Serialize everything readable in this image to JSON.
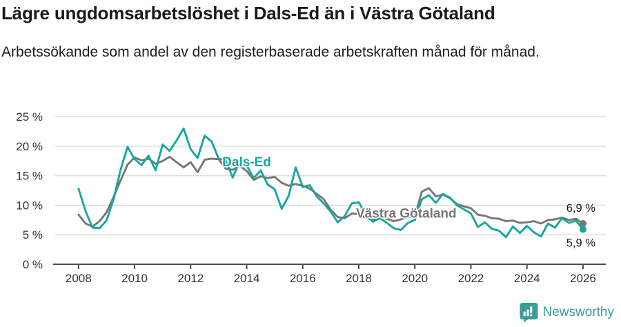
{
  "header": {
    "title": "Lägre ungdomsarbetslöshet i Dals-Ed än i Västra Götaland",
    "subtitle": "Arbetssökande som andel av den registerbaserade arbetskraften månad för månad."
  },
  "footer": {
    "brand": "Newsworthy",
    "brand_color": "#3a9d96",
    "logo_icon": "newsworthy-pin-barchart-icon"
  },
  "chart_data": {
    "type": "line",
    "title": "Lägre ungdomsarbetslöshet i Dals-Ed än i Västra Götaland",
    "subtitle": "Arbetssökande som andel av den registerbaserade arbetskraften månad för månad.",
    "xlabel": "",
    "ylabel": "",
    "unit": "%",
    "grid": "horizontal",
    "legend": "inline-labels",
    "xlim": [
      2007.9,
      2026.8
    ],
    "ylim": [
      0,
      25
    ],
    "yticks": [
      {
        "value": 0,
        "label": "0 %"
      },
      {
        "value": 5,
        "label": "5 %"
      },
      {
        "value": 10,
        "label": "10 %"
      },
      {
        "value": 15,
        "label": "15 %"
      },
      {
        "value": 20,
        "label": "20 %"
      },
      {
        "value": 25,
        "label": "25 %"
      }
    ],
    "xticks": [
      {
        "value": 2008,
        "label": "2008"
      },
      {
        "value": 2010,
        "label": "2010"
      },
      {
        "value": 2012,
        "label": "2012"
      },
      {
        "value": 2014,
        "label": "2014"
      },
      {
        "value": 2016,
        "label": "2016"
      },
      {
        "value": 2018,
        "label": "2018"
      },
      {
        "value": 2020,
        "label": "2020"
      },
      {
        "value": 2022,
        "label": "2022"
      },
      {
        "value": 2024,
        "label": "2024"
      },
      {
        "value": 2026,
        "label": "2026"
      }
    ],
    "x": [
      2008,
      2008.25,
      2008.5,
      2008.75,
      2009,
      2009.25,
      2009.5,
      2009.75,
      2010,
      2010.25,
      2010.5,
      2010.75,
      2011,
      2011.25,
      2011.5,
      2011.75,
      2012,
      2012.25,
      2012.5,
      2012.75,
      2013,
      2013.25,
      2013.5,
      2013.75,
      2014,
      2014.25,
      2014.5,
      2014.75,
      2015,
      2015.25,
      2015.5,
      2015.75,
      2016,
      2016.25,
      2016.5,
      2016.75,
      2017,
      2017.25,
      2017.5,
      2017.75,
      2018,
      2018.25,
      2018.5,
      2018.75,
      2019,
      2019.25,
      2019.5,
      2019.75,
      2020,
      2020.25,
      2020.5,
      2020.75,
      2021,
      2021.25,
      2021.5,
      2021.75,
      2022,
      2022.25,
      2022.5,
      2022.75,
      2023,
      2023.25,
      2023.5,
      2023.75,
      2024,
      2024.25,
      2024.5,
      2024.75,
      2025,
      2025.25,
      2025.5,
      2025.75,
      2026
    ],
    "series": [
      {
        "id": "vastra-gotaland",
        "name": "Västra Götaland",
        "color": "#767676",
        "end_value": 6.9,
        "end_label": "6,9 %",
        "end_label_position": "above",
        "inline_label_x": 2017.9,
        "inline_label_y": 7.9,
        "values": [
          8.4,
          6.9,
          6.4,
          7.3,
          8.8,
          11.4,
          14.2,
          16.9,
          18.1,
          17.6,
          17.9,
          17.0,
          17.5,
          18.2,
          17.3,
          16.4,
          17.3,
          15.6,
          17.7,
          17.9,
          17.8,
          16.2,
          16.0,
          16.7,
          15.8,
          14.3,
          14.9,
          14.6,
          14.8,
          13.8,
          13.3,
          13.6,
          13.3,
          12.8,
          11.9,
          11.0,
          9.2,
          8.0,
          7.8,
          8.6,
          8.5,
          7.9,
          7.5,
          8.0,
          7.7,
          7.3,
          7.6,
          8.0,
          8.2,
          12.3,
          12.9,
          11.5,
          11.8,
          11.2,
          10.2,
          9.8,
          9.5,
          8.4,
          8.2,
          7.8,
          7.7,
          7.3,
          7.4,
          7.0,
          7.1,
          7.3,
          6.9,
          7.5,
          7.6,
          7.9,
          7.5,
          7.7,
          6.9
        ]
      },
      {
        "id": "dals-ed",
        "name": "Dals-Ed",
        "color": "#16a69e",
        "end_value": 5.9,
        "end_label": "5,9 %",
        "end_label_position": "below",
        "inline_label_x": 2013.13,
        "inline_label_y": 16.6,
        "values": [
          12.8,
          9.0,
          6.2,
          6.1,
          7.4,
          11.0,
          16.0,
          19.9,
          17.8,
          16.8,
          18.4,
          15.9,
          20.3,
          19.2,
          21.0,
          23.0,
          19.5,
          18.0,
          21.8,
          20.8,
          17.9,
          17.6,
          14.7,
          17.4,
          16.7,
          14.6,
          15.9,
          13.5,
          12.7,
          9.4,
          11.6,
          16.4,
          13.1,
          13.4,
          11.5,
          10.3,
          8.9,
          7.1,
          8.2,
          10.3,
          10.5,
          8.4,
          7.2,
          7.8,
          7.0,
          6.1,
          5.8,
          7.0,
          7.5,
          11.0,
          11.7,
          10.4,
          11.9,
          11.3,
          10.0,
          9.3,
          8.6,
          6.3,
          7.1,
          6.0,
          5.7,
          4.6,
          6.4,
          5.3,
          6.5,
          5.4,
          4.7,
          6.9,
          6.2,
          7.8,
          7.0,
          7.4,
          5.9
        ]
      }
    ],
    "colors": {
      "grid": "#dadada",
      "axis": "#4d4d4d",
      "tick_text": "#333333",
      "end_label_text": "#1a1a1a"
    }
  }
}
